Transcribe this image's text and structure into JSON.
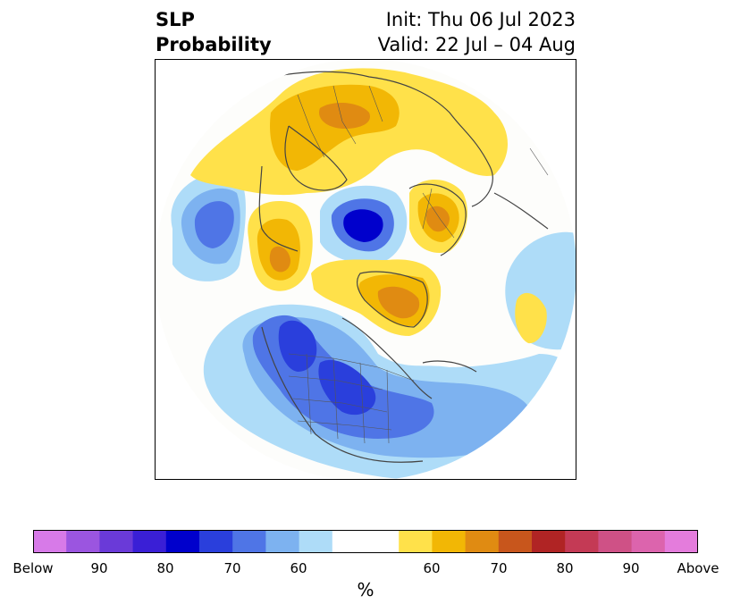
{
  "title": {
    "left_line1": "SLP",
    "left_line2": "Probability",
    "right_line1": "Init: Thu 06 Jul 2023",
    "right_line2": "Valid: 22 Jul – 04 Aug"
  },
  "colorbar": {
    "colors": [
      "#d77ae8",
      "#9b55e0",
      "#6a3ad8",
      "#3a1fd6",
      "#0000cc",
      "#2a3fdc",
      "#4f75e6",
      "#7db2f0",
      "#aedcf8",
      "#ffffff",
      "#ffe14a",
      "#f2b705",
      "#e08b12",
      "#c8561c",
      "#b02424",
      "#c43a55",
      "#cf5186",
      "#dc64ad",
      "#e47cdc"
    ],
    "tick_labels": [
      "Below",
      "90",
      "80",
      "70",
      "60",
      "60",
      "70",
      "80",
      "90",
      "Above"
    ],
    "unit": "%"
  },
  "map": {
    "projection": "north-polar-stereographic",
    "variable": "sea-level-pressure-probability",
    "features": [
      {
        "region": "north-central-pacific",
        "category": "below",
        "level": "70-80"
      },
      {
        "region": "central-arctic-ocean",
        "category": "below",
        "level": "85-90"
      },
      {
        "region": "western-north-america",
        "category": "below",
        "level": "80-85"
      },
      {
        "region": "central-north-america",
        "category": "below",
        "level": "80-85"
      },
      {
        "region": "north-atlantic",
        "category": "below",
        "level": "55-65"
      },
      {
        "region": "greenland",
        "category": "above",
        "level": "65-70"
      },
      {
        "region": "europe-scandinavia",
        "category": "above",
        "level": "70-75"
      },
      {
        "region": "northeast-russia-siberia",
        "category": "above",
        "level": "55-65"
      },
      {
        "region": "alaska-bering",
        "category": "above",
        "level": "65-70"
      }
    ]
  }
}
